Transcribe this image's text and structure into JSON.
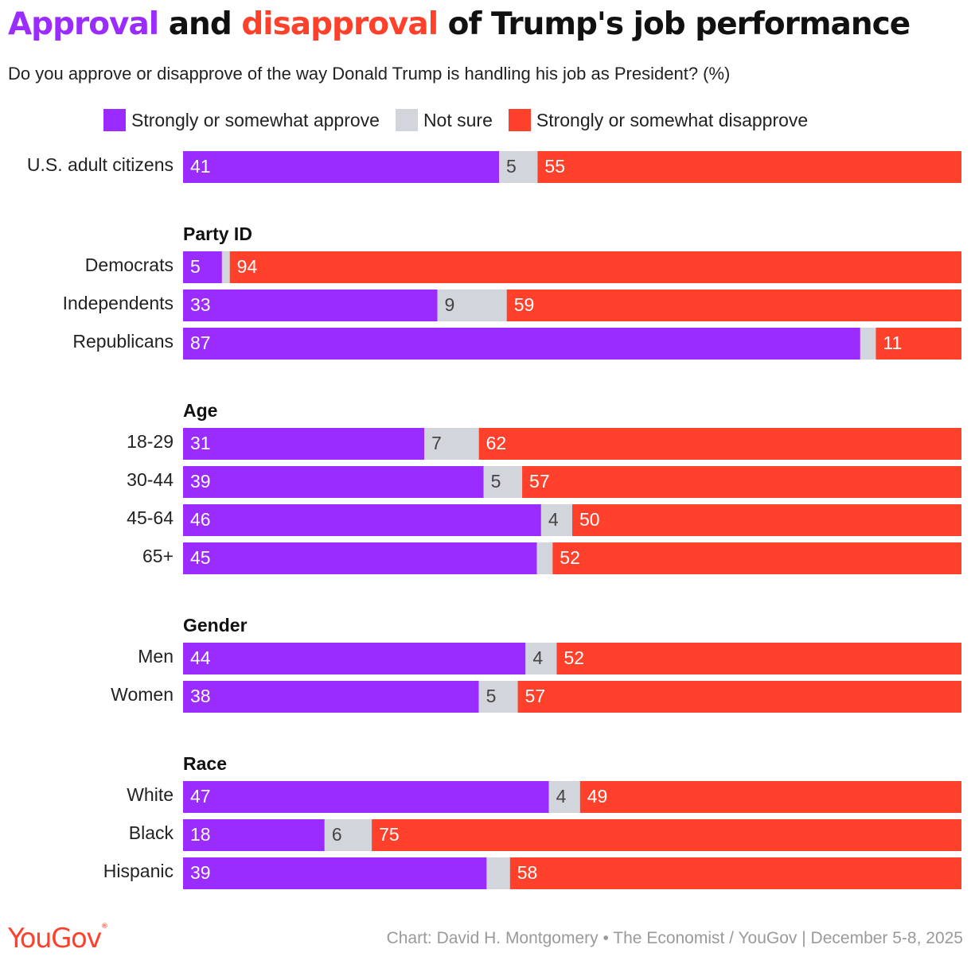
{
  "title": {
    "part1": "Approval",
    "part2": " and ",
    "part3": "disapproval",
    "part4": " of Trump's job performance"
  },
  "subtitle": "Do you approve or disapprove of the way Donald Trump is handling his job as President? (%)",
  "colors": {
    "approve": "#9b2cff",
    "not_sure": "#d3d5dc",
    "disapprove": "#ff412c",
    "not_sure_text": "#444444",
    "bar_text": "#ffffff"
  },
  "legend": [
    {
      "label": "Strongly or somewhat approve",
      "color": "#9b2cff"
    },
    {
      "label": "Not sure",
      "color": "#d3d5dc"
    },
    {
      "label": "Strongly or somewhat disapprove",
      "color": "#ff412c"
    }
  ],
  "chart_data": {
    "type": "bar",
    "orientation": "horizontal-stacked",
    "xlim": [
      0,
      100
    ],
    "series": [
      {
        "name": "Strongly or somewhat approve"
      },
      {
        "name": "Not sure"
      },
      {
        "name": "Strongly or somewhat disapprove"
      }
    ],
    "groups": [
      {
        "label": "",
        "rows": [
          {
            "label": "U.S. adult citizens",
            "approve": 41,
            "not_sure": 5,
            "disapprove": 55
          }
        ]
      },
      {
        "label": "Party ID",
        "rows": [
          {
            "label": "Democrats",
            "approve": 5,
            "not_sure": 1,
            "disapprove": 94
          },
          {
            "label": "Independents",
            "approve": 33,
            "not_sure": 9,
            "disapprove": 59
          },
          {
            "label": "Republicans",
            "approve": 87,
            "not_sure": 2,
            "disapprove": 11
          }
        ]
      },
      {
        "label": "Age",
        "rows": [
          {
            "label": "18-29",
            "approve": 31,
            "not_sure": 7,
            "disapprove": 62
          },
          {
            "label": "30-44",
            "approve": 39,
            "not_sure": 5,
            "disapprove": 57
          },
          {
            "label": "45-64",
            "approve": 46,
            "not_sure": 4,
            "disapprove": 50
          },
          {
            "label": "65+",
            "approve": 45,
            "not_sure": 2,
            "disapprove": 52
          }
        ]
      },
      {
        "label": "Gender",
        "rows": [
          {
            "label": "Men",
            "approve": 44,
            "not_sure": 4,
            "disapprove": 52
          },
          {
            "label": "Women",
            "approve": 38,
            "not_sure": 5,
            "disapprove": 57
          }
        ]
      },
      {
        "label": "Race",
        "rows": [
          {
            "label": "White",
            "approve": 47,
            "not_sure": 4,
            "disapprove": 49
          },
          {
            "label": "Black",
            "approve": 18,
            "not_sure": 6,
            "disapprove": 75
          },
          {
            "label": "Hispanic",
            "approve": 39,
            "not_sure": 3,
            "disapprove": 58
          }
        ]
      }
    ]
  },
  "footer": {
    "logo": "YouGov",
    "source": "Chart: David H. Montgomery • The Economist / YouGov | December 5-8, 2025"
  }
}
